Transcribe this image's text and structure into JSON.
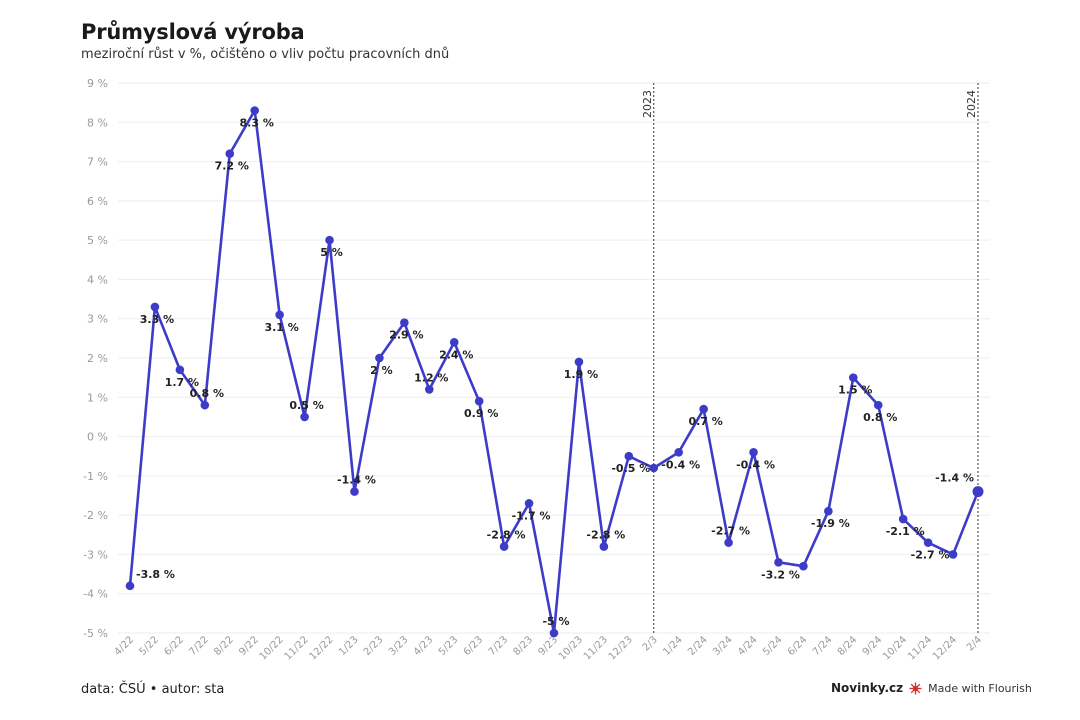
{
  "header": {
    "title": "Průmyslová výroba",
    "subtitle": "meziroční růst v %, očištěno o vliv počtu pracovních dnů"
  },
  "footer": {
    "source": "data: ČSÚ • autor: sta",
    "brand": "Novinky.cz",
    "flourish": "Made with Flourish"
  },
  "colors": {
    "line": "#3d3cc9",
    "grid": "#eeeeee",
    "axis": "#9a9a9a"
  },
  "chart_data": {
    "type": "line",
    "title": "Průmyslová výroba",
    "subtitle": "meziroční růst v %, očištěno o vliv počtu pracovních dnů",
    "ylim": [
      -5,
      9
    ],
    "yticks": [
      "-5 %",
      "-4 %",
      "-3 %",
      "-2 %",
      "-1 %",
      "0 %",
      "1 %",
      "2 %",
      "3 %",
      "4 %",
      "5 %",
      "6 %",
      "7 %",
      "8 %",
      "9 %"
    ],
    "grid": true,
    "categories": [
      "4/22",
      "5/22",
      "6/22",
      "7/22",
      "8/22",
      "9/22",
      "10/22",
      "11/22",
      "12/22",
      "1/23",
      "2/23",
      "3/23",
      "4/23",
      "5/23",
      "6/23",
      "7/23",
      "8/23",
      "9/23",
      "10/23",
      "11/23",
      "12/23",
      "2/3",
      "1/24",
      "2/24",
      "3/24",
      "4/24",
      "5/24",
      "6/24",
      "7/24",
      "8/24",
      "9/24",
      "10/24",
      "11/24",
      "12/24",
      "2/4"
    ],
    "series": [
      {
        "values": [
          -3.8,
          3.3,
          1.7,
          0.8,
          7.2,
          8.3,
          3.1,
          0.5,
          5.0,
          -1.4,
          2.0,
          2.9,
          1.2,
          2.4,
          0.9,
          -2.8,
          -1.7,
          -5.0,
          1.9,
          -2.8,
          -0.5,
          -0.8,
          -0.4,
          0.7,
          -2.7,
          -0.4,
          -3.2,
          -3.3,
          -1.9,
          1.5,
          0.8,
          -2.1,
          -2.7,
          -3.0,
          -1.4
        ],
        "labels": [
          "-3.8 %",
          "3.3 %",
          "1.7 %",
          "0.8 %",
          "7.2 %",
          "8.3 %",
          "3.1 %",
          "0.5 %",
          "5 %",
          "-1.4 %",
          "2 %",
          "2.9 %",
          "1.2 %",
          "2.4 %",
          "0.9 %",
          "-2.8 %",
          "-1.7 %",
          "-5 %",
          "1.9 %",
          "-2.8 %",
          "-0.5 %",
          "",
          "-0.4 %",
          "0.7 %",
          "-2.7 %",
          "-0.4 %",
          "-3.2 %",
          "",
          "-1.9 %",
          "1.5 %",
          "0.8 %",
          "-2.1 %",
          "-2.7 %",
          "",
          "-1.4 %"
        ]
      }
    ],
    "annotations": [
      {
        "label": "2023",
        "category": "2/3"
      },
      {
        "label": "2024",
        "category": "2/4"
      }
    ]
  }
}
